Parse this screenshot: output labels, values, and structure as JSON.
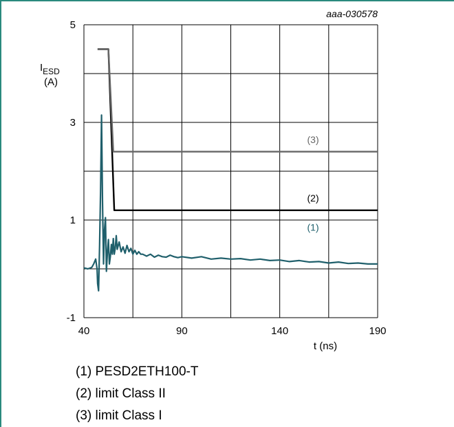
{
  "figure_id": "aaa-030578",
  "colors": {
    "frame": "#2a8a7e",
    "series1": "#1f5f6b",
    "series2": "#000000",
    "series3": "#666666",
    "grid": "#000000"
  },
  "chart_data": {
    "type": "line",
    "title": "",
    "ylabel_main": "I",
    "ylabel_sub": "ESD",
    "ylabel_unit": "(A)",
    "xlabel": "t (ns)",
    "xlim": [
      40,
      190
    ],
    "ylim": [
      -1,
      5
    ],
    "x_ticks": [
      40,
      90,
      140,
      190
    ],
    "y_ticks": [
      5,
      3,
      1,
      -1
    ],
    "grid": true,
    "series": [
      {
        "label": "(1)",
        "color": "#1f5f6b",
        "x": [
          40,
          42,
          44,
          45,
          46,
          46.7,
          47,
          47.5,
          48,
          48.5,
          49,
          49.5,
          50,
          50.5,
          51,
          51.5,
          52,
          52.5,
          53,
          53.5,
          54,
          54.5,
          55,
          55.5,
          56,
          56.5,
          57,
          58,
          59,
          60,
          61,
          62,
          63,
          64,
          65,
          66,
          67,
          68,
          69,
          70,
          72,
          74,
          76,
          78,
          80,
          82,
          84,
          86,
          88,
          90,
          95,
          100,
          105,
          110,
          115,
          120,
          125,
          130,
          135,
          140,
          145,
          150,
          155,
          160,
          165,
          170,
          175,
          180,
          185,
          190
        ],
        "y": [
          0.02,
          0.0,
          0.03,
          0.1,
          0.2,
          0.0,
          -0.3,
          -0.45,
          0.5,
          1.6,
          3.15,
          1.4,
          0.1,
          0.8,
          1.05,
          -0.05,
          0.35,
          0.6,
          0.1,
          0.25,
          0.5,
          0.3,
          0.62,
          0.3,
          0.42,
          0.68,
          0.4,
          0.55,
          0.35,
          0.45,
          0.32,
          0.48,
          0.35,
          0.42,
          0.3,
          0.38,
          0.3,
          0.35,
          0.3,
          0.3,
          0.26,
          0.3,
          0.24,
          0.28,
          0.25,
          0.24,
          0.28,
          0.25,
          0.23,
          0.25,
          0.22,
          0.25,
          0.2,
          0.22,
          0.2,
          0.21,
          0.18,
          0.2,
          0.17,
          0.18,
          0.15,
          0.17,
          0.14,
          0.15,
          0.12,
          0.14,
          0.11,
          0.12,
          0.1,
          0.1
        ]
      },
      {
        "label": "(2)",
        "color": "#000000",
        "x": [
          47,
          52.5,
          55.5,
          190
        ],
        "y": [
          4.5,
          4.5,
          1.2,
          1.2
        ]
      },
      {
        "label": "(3)",
        "color": "#666666",
        "x": [
          47,
          52.5,
          55,
          190
        ],
        "y": [
          4.5,
          4.5,
          2.4,
          2.4
        ]
      }
    ],
    "series_label_positions": [
      {
        "label": "(1)",
        "x": 154,
        "y": 0.78
      },
      {
        "label": "(2)",
        "x": 154,
        "y": 1.38
      },
      {
        "label": "(3)",
        "x": 154,
        "y": 2.58
      }
    ]
  },
  "legend": [
    "(1) PESD2ETH100-T",
    "(2) limit Class II",
    "(3) limit Class I"
  ]
}
